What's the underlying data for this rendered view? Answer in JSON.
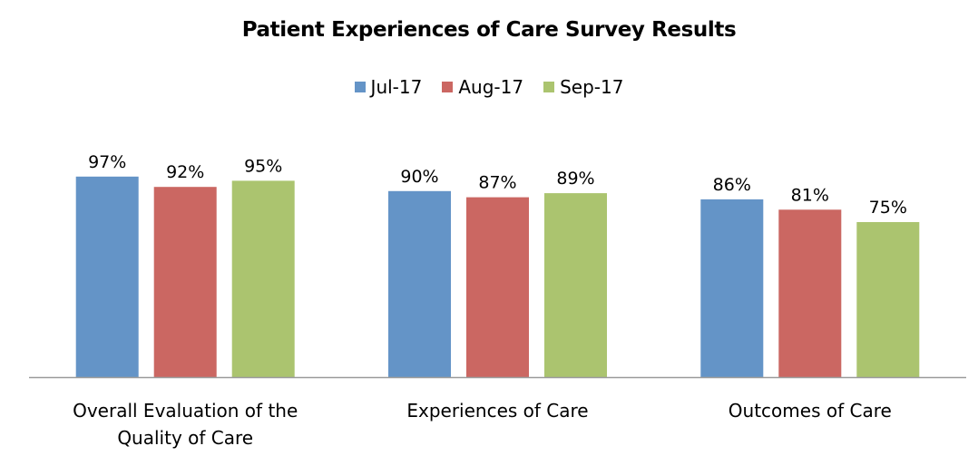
{
  "chart_data": {
    "type": "bar",
    "title": "Patient Experiences of Care Survey Results",
    "xlabel": "",
    "ylabel": "",
    "ylim": [
      0,
      100
    ],
    "grid": false,
    "legend_position": "top",
    "categories": [
      [
        "Overall Evaluation of the",
        "Quality of Care"
      ],
      [
        "Experiences of Care"
      ],
      [
        "Outcomes of Care"
      ]
    ],
    "series": [
      {
        "name": "Jul-17",
        "color": "#6494c7",
        "values": [
          97,
          90,
          86
        ],
        "labels": [
          "97%",
          "90%",
          "86%"
        ]
      },
      {
        "name": "Aug-17",
        "color": "#cb6762",
        "values": [
          92,
          87,
          81
        ],
        "labels": [
          "92%",
          "87%",
          "81%"
        ]
      },
      {
        "name": "Sep-17",
        "color": "#abc46f",
        "values": [
          95,
          89,
          75
        ],
        "labels": [
          "95%",
          "89%",
          "75%"
        ]
      }
    ],
    "axis_color": "#9a9a9a"
  }
}
